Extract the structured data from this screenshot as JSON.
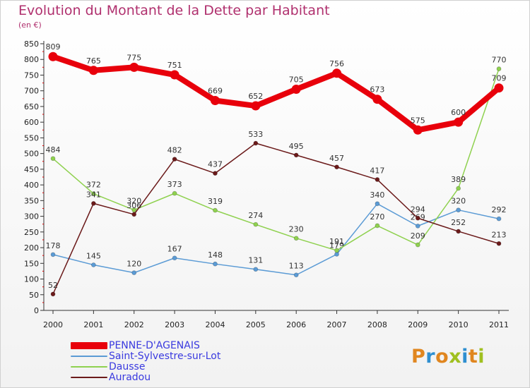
{
  "chart_data": {
    "type": "line",
    "title": "Evolution du Montant de la Dette par Habitant",
    "subtitle": "(en €)",
    "xlabel": "",
    "ylabel": "",
    "ylim": [
      0,
      850
    ],
    "ytick_step": 50,
    "grid": false,
    "legend_placement": "bottom-left",
    "categories": [
      "2000",
      "2001",
      "2002",
      "2003",
      "2004",
      "2005",
      "2006",
      "2007",
      "2008",
      "2009",
      "2010",
      "2011"
    ],
    "series": [
      {
        "name": "PENNE-D'AGENAIS",
        "color": "#e8000b",
        "emphasis": true,
        "values": [
          809,
          765,
          775,
          751,
          669,
          652,
          705,
          756,
          673,
          575,
          600,
          709
        ]
      },
      {
        "name": "Saint-Sylvestre-sur-Lot",
        "color": "#5b9bd5",
        "emphasis": false,
        "values": [
          178,
          145,
          120,
          167,
          148,
          131,
          113,
          179,
          340,
          269,
          320,
          292
        ]
      },
      {
        "name": "Dausse",
        "color": "#8fd14f",
        "emphasis": false,
        "values": [
          484,
          372,
          320,
          373,
          319,
          274,
          230,
          191,
          270,
          209,
          389,
          770
        ]
      },
      {
        "name": "Auradou",
        "color": "#6b1a1a",
        "emphasis": false,
        "values": [
          52,
          341,
          306,
          482,
          437,
          533,
          495,
          457,
          417,
          294,
          252,
          213
        ]
      }
    ]
  },
  "logo": {
    "letters": [
      "P",
      "r",
      "o",
      "x",
      "i",
      "t",
      "i"
    ]
  }
}
